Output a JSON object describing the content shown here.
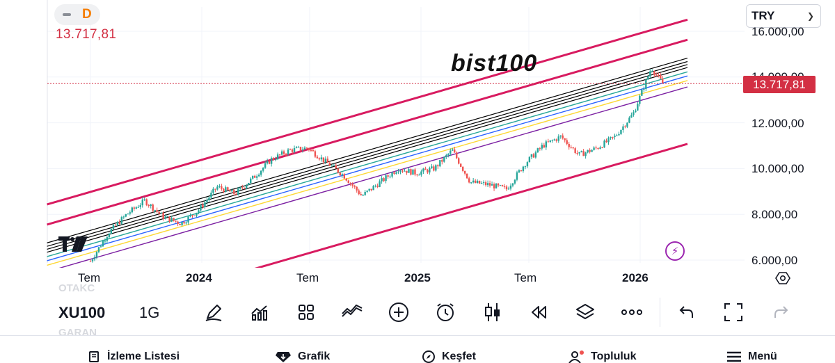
{
  "header": {
    "minimize_icon": "minus-icon",
    "interval_badge": "D",
    "last_price": "13.717,81",
    "currency": "TRY"
  },
  "chart": {
    "title": "bist100",
    "last_price_tag": "13.717,81",
    "y_ticks": [
      "16.000,00",
      "14.000,00",
      "12.000,00",
      "10.000,00",
      "8.000,00",
      "6.000,00"
    ],
    "x_ticks": [
      "Tem",
      "2024",
      "Tem",
      "2025",
      "Tem",
      "2026"
    ],
    "colors": {
      "channel": "#d81b60",
      "center_lines": "#000000",
      "teal": "#26a69a",
      "blue": "#2962ff",
      "yellow": "#fdd835",
      "purple": "#7b1fa2",
      "up_candle": "#26a69a",
      "down_candle": "#ef5350",
      "last_price_line": "#d32f43"
    }
  },
  "toolbar": {
    "ghost_above": "OTAKC",
    "ghost_below": "GARAN",
    "symbol": "XU100",
    "interval": "1G",
    "icons": [
      "draw-pen-icon",
      "indicators-icon",
      "templates-icon",
      "compare-icon",
      "add-icon",
      "alert-clock-icon",
      "candle-type-icon",
      "replay-icon",
      "layers-icon",
      "more-icon",
      "undo-icon",
      "fullscreen-icon",
      "redo-icon"
    ]
  },
  "nav": {
    "watchlist": "İzleme Listesi",
    "chart": "Grafik",
    "explore": "Keşfet",
    "community": "Topluluk",
    "menu": "Menü"
  },
  "chart_data": {
    "type": "candlestick",
    "title": "bist100",
    "symbol": "XU100",
    "interval": "1G",
    "currency": "TRY",
    "x_ticks": [
      "Tem",
      "2024",
      "Tem",
      "2025",
      "Tem",
      "2026"
    ],
    "y_ticks": [
      16000,
      14000,
      12000,
      10000,
      8000,
      6000
    ],
    "ylim": [
      5900,
      16100
    ],
    "last_price": 13717.81,
    "approx_close_path": [
      {
        "x": "2023-07",
        "y": 5950
      },
      {
        "x": "2023-08",
        "y": 7200
      },
      {
        "x": "2023-09",
        "y": 8000
      },
      {
        "x": "2023-10",
        "y": 8600
      },
      {
        "x": "2023-11",
        "y": 7900
      },
      {
        "x": "2023-12",
        "y": 7600
      },
      {
        "x": "2024-01",
        "y": 8200
      },
      {
        "x": "2024-02",
        "y": 9200
      },
      {
        "x": "2024-03",
        "y": 8900
      },
      {
        "x": "2024-04",
        "y": 9600
      },
      {
        "x": "2024-05",
        "y": 10400
      },
      {
        "x": "2024-06",
        "y": 10800
      },
      {
        "x": "2024-07",
        "y": 10900
      },
      {
        "x": "2024-08",
        "y": 10300
      },
      {
        "x": "2024-09",
        "y": 9700
      },
      {
        "x": "2024-10",
        "y": 8800
      },
      {
        "x": "2024-11",
        "y": 9400
      },
      {
        "x": "2024-12",
        "y": 10000
      },
      {
        "x": "2025-01",
        "y": 9800
      },
      {
        "x": "2025-02",
        "y": 10000
      },
      {
        "x": "2025-03",
        "y": 10800
      },
      {
        "x": "2025-04",
        "y": 9400
      },
      {
        "x": "2025-05",
        "y": 9300
      },
      {
        "x": "2025-06",
        "y": 9100
      },
      {
        "x": "2025-07",
        "y": 10200
      },
      {
        "x": "2025-08",
        "y": 11000
      },
      {
        "x": "2025-09",
        "y": 11400
      },
      {
        "x": "2025-10",
        "y": 10600
      },
      {
        "x": "2025-11",
        "y": 10900
      },
      {
        "x": "2025-12",
        "y": 11400
      },
      {
        "x": "2026-01",
        "y": 12400
      },
      {
        "x": "2026-02",
        "y": 14400
      },
      {
        "x": "2026-02-20",
        "y": 13718
      }
    ]
  }
}
